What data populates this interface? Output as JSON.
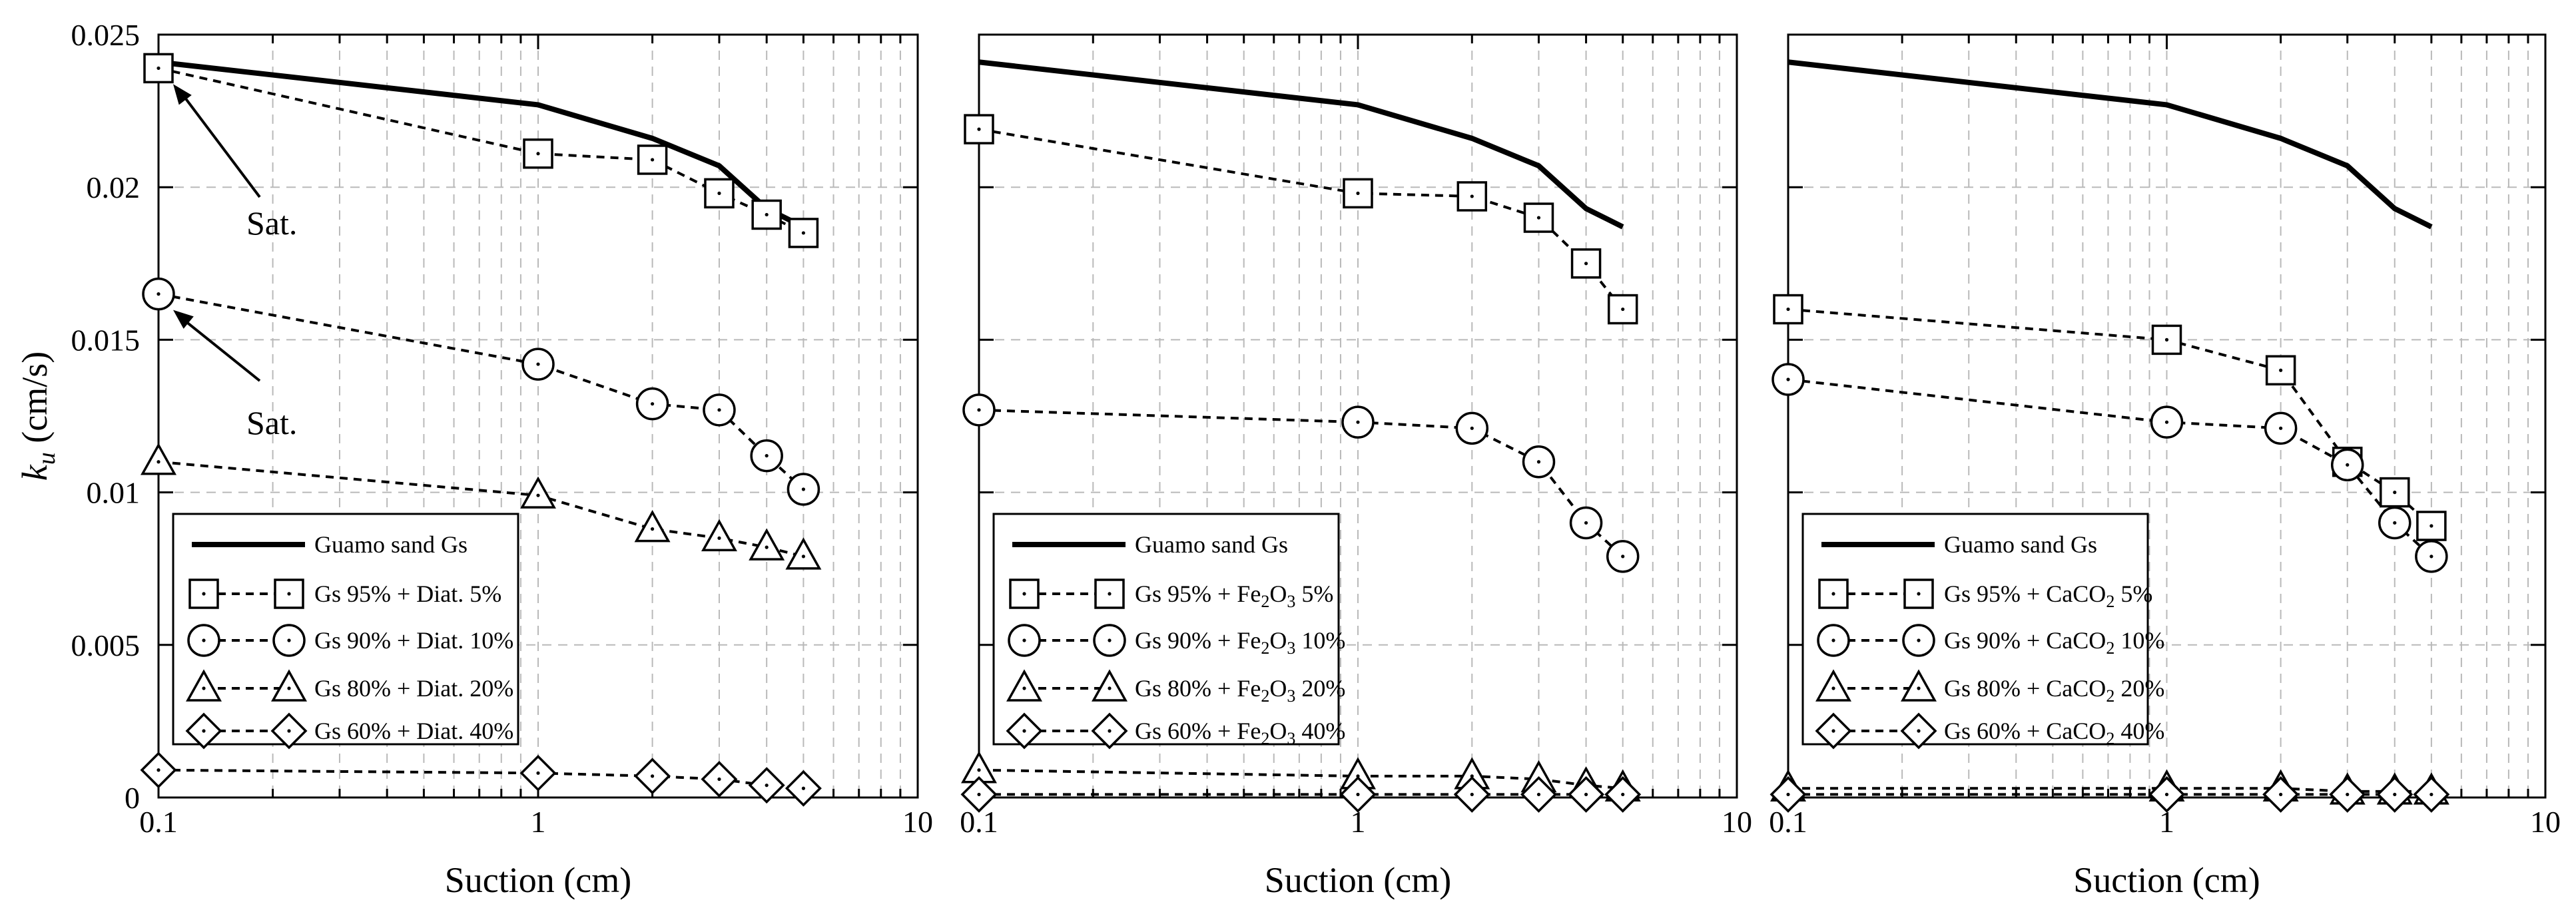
{
  "chart_data": [
    {
      "type": "line",
      "panel": "left",
      "xscale": "log",
      "xlim": [
        0.1,
        10
      ],
      "ylim": [
        0,
        0.025
      ],
      "xlabel": "Suction (cm)",
      "ylabel_main": "k",
      "ylabel_sub": "u",
      "ylabel_unit": " (cm/s)",
      "x_ticks": [
        0.1,
        1,
        10
      ],
      "x_tick_labels": [
        "0.1",
        "1",
        "10"
      ],
      "y_ticks": [
        0,
        0.005,
        0.01,
        0.015,
        0.02,
        0.025
      ],
      "y_tick_labels": [
        "0",
        "0.005",
        "0.01",
        "0.015",
        "0.02",
        "0.025"
      ],
      "reference": {
        "name": "Guamo sand Gs",
        "x": [
          0.1,
          1,
          2,
          3,
          4,
          5
        ],
        "y": [
          0.0241,
          0.0227,
          0.0216,
          0.0207,
          0.0193,
          0.0187
        ]
      },
      "series": [
        {
          "name": "Gs 95% + Diat. 5%",
          "marker": "square",
          "x": [
            0.1,
            1,
            2,
            3,
            4,
            5
          ],
          "y": [
            0.0239,
            0.0211,
            0.0209,
            0.0198,
            0.0191,
            0.0185
          ]
        },
        {
          "name": "Gs 90% + Diat. 10%",
          "marker": "circle",
          "x": [
            0.1,
            1,
            2,
            3,
            4,
            5
          ],
          "y": [
            0.0165,
            0.0142,
            0.0129,
            0.0127,
            0.0112,
            0.0101
          ]
        },
        {
          "name": "Gs 80% + Diat. 20%",
          "marker": "triangle",
          "x": [
            0.1,
            1,
            2,
            3,
            4,
            5
          ],
          "y": [
            0.011,
            0.0099,
            0.0088,
            0.0085,
            0.0082,
            0.0079
          ]
        },
        {
          "name": "Gs 60% + Diat. 40%",
          "marker": "diamond",
          "x": [
            0.1,
            1,
            2,
            3,
            4,
            5
          ],
          "y": [
            0.0009,
            0.0008,
            0.0007,
            0.0006,
            0.0004,
            0.0003
          ]
        }
      ],
      "legend_location": "bottom-left",
      "annotations": [
        {
          "text": "Sat.",
          "points_to": "Gs 95% + Diat. 5% at 0.1 cm"
        },
        {
          "text": "Sat.",
          "points_to": "Gs 90% + Diat. 10% at 0.1 cm"
        }
      ]
    },
    {
      "type": "line",
      "panel": "middle",
      "xscale": "log",
      "xlim": [
        0.1,
        10
      ],
      "ylim": [
        0,
        0.025
      ],
      "xlabel": "Suction (cm)",
      "x_ticks": [
        0.1,
        1,
        10
      ],
      "x_tick_labels": [
        "0.1",
        "1",
        "10"
      ],
      "reference": {
        "name": "Guamo sand Gs",
        "x": [
          0.1,
          1,
          2,
          3,
          4,
          5
        ],
        "y": [
          0.0241,
          0.0227,
          0.0216,
          0.0207,
          0.0193,
          0.0187
        ]
      },
      "series": [
        {
          "name": "Gs 95% + Fe2O3 5%",
          "prefix": "Gs 95% + Fe",
          "sub1": "2",
          "mid": "O",
          "sub2": "3",
          "suffix": " 5%",
          "marker": "square",
          "x": [
            0.1,
            1,
            2,
            3,
            4,
            5
          ],
          "y": [
            0.0219,
            0.0198,
            0.0197,
            0.019,
            0.0175,
            0.016
          ]
        },
        {
          "name": "Gs 90% + Fe2O3 10%",
          "prefix": "Gs 90% + Fe",
          "sub1": "2",
          "mid": "O",
          "sub2": "3",
          "suffix": " 10%",
          "marker": "circle",
          "x": [
            0.1,
            1,
            2,
            3,
            4,
            5
          ],
          "y": [
            0.0127,
            0.0123,
            0.0121,
            0.011,
            0.009,
            0.0079
          ]
        },
        {
          "name": "Gs 80% + Fe2O3 20%",
          "prefix": "Gs 80% + Fe",
          "sub1": "2",
          "mid": "O",
          "sub2": "3",
          "suffix": " 20%",
          "marker": "triangle",
          "x": [
            0.1,
            1,
            2,
            3,
            4,
            5
          ],
          "y": [
            0.0009,
            0.0007,
            0.0007,
            0.0006,
            0.0004,
            0.0003
          ]
        },
        {
          "name": "Gs 60% + Fe2O3 40%",
          "prefix": "Gs 60% + Fe",
          "sub1": "2",
          "mid": "O",
          "sub2": "3",
          "suffix": " 40%",
          "marker": "diamond",
          "x": [
            0.1,
            1,
            2,
            3,
            4,
            5
          ],
          "y": [
            0.0001,
            0.0001,
            0.0001,
            0.0001,
            0.0001,
            0.0001
          ]
        }
      ],
      "legend_location": "bottom-left"
    },
    {
      "type": "line",
      "panel": "right",
      "xscale": "log",
      "xlim": [
        0.1,
        10
      ],
      "ylim": [
        0,
        0.025
      ],
      "xlabel": "Suction (cm)",
      "x_ticks": [
        0.1,
        1,
        10
      ],
      "x_tick_labels": [
        "0.1",
        "1",
        "10"
      ],
      "reference": {
        "name": "Guamo sand Gs",
        "x": [
          0.1,
          1,
          2,
          3,
          4,
          5
        ],
        "y": [
          0.0241,
          0.0227,
          0.0216,
          0.0207,
          0.0193,
          0.0187
        ]
      },
      "series": [
        {
          "name": "Gs 95% + CaCO2 5%",
          "prefix": "Gs 95% + CaCO",
          "sub1": "2",
          "mid": "",
          "sub2": "",
          "suffix": " 5%",
          "marker": "square",
          "x": [
            0.1,
            1,
            2,
            3,
            4,
            5
          ],
          "y": [
            0.016,
            0.015,
            0.014,
            0.011,
            0.01,
            0.0089
          ]
        },
        {
          "name": "Gs 90% + CaCO2 10%",
          "prefix": "Gs 90% + CaCO",
          "sub1": "2",
          "mid": "",
          "sub2": "",
          "suffix": " 10%",
          "marker": "circle",
          "x": [
            0.1,
            1,
            2,
            3,
            4,
            5
          ],
          "y": [
            0.0137,
            0.0123,
            0.0121,
            0.0109,
            0.009,
            0.0079
          ]
        },
        {
          "name": "Gs 80% + CaCO2 20%",
          "prefix": "Gs 80% + CaCO",
          "sub1": "2",
          "mid": "",
          "sub2": "",
          "suffix": " 20%",
          "marker": "triangle",
          "x": [
            0.1,
            1,
            2,
            3,
            4,
            5
          ],
          "y": [
            0.0003,
            0.0003,
            0.0003,
            0.0002,
            0.0002,
            0.0002
          ]
        },
        {
          "name": "Gs 60% + CaCO2 40%",
          "prefix": "Gs 60% + CaCO",
          "sub1": "2",
          "mid": "",
          "sub2": "",
          "suffix": " 40%",
          "marker": "diamond",
          "x": [
            0.1,
            1,
            2,
            3,
            4,
            5
          ],
          "y": [
            0.0001,
            0.0001,
            0.0001,
            0.0001,
            0.0001,
            0.0001
          ]
        }
      ],
      "legend_location": "bottom-left"
    }
  ]
}
